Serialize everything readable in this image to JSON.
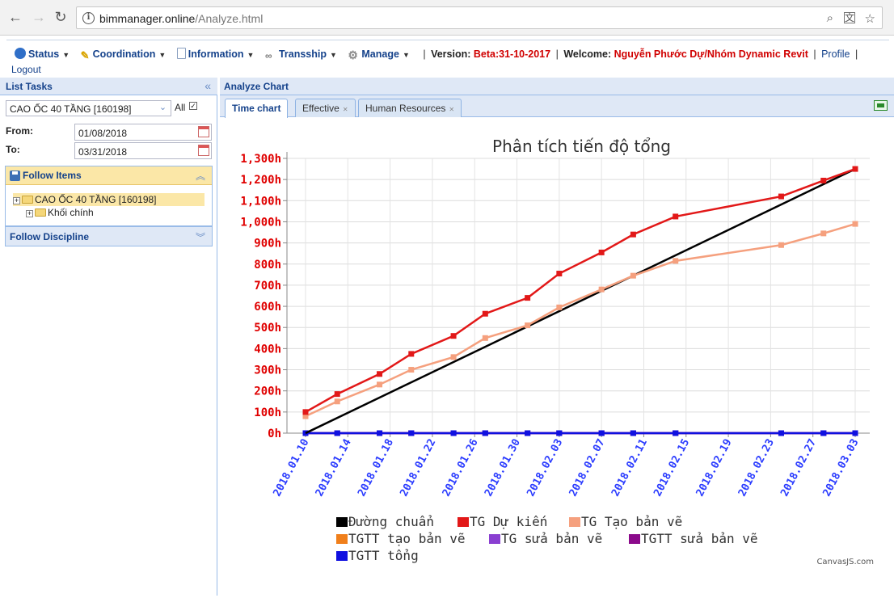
{
  "browser": {
    "url_host": "bimmanager.online",
    "url_path": "/Analyze.html"
  },
  "menu": {
    "items": [
      {
        "label": "Status",
        "icon": "status-icon",
        "color": "#2f6fc8"
      },
      {
        "label": "Coordination",
        "icon": "wand-icon",
        "color": "#d9a400"
      },
      {
        "label": "Information",
        "icon": "document-icon",
        "color": "#8aa0c0"
      },
      {
        "label": "Transship",
        "icon": "link-icon",
        "color": "#777777"
      },
      {
        "label": "Manage",
        "icon": "gear-icon",
        "color": "#888888"
      }
    ],
    "version_label": "Version:",
    "version_value": "Beta:31-10-2017",
    "welcome_label": "Welcome:",
    "welcome_value": "Nguyễn Phước Dự/Nhóm Dynamic Revit",
    "profile_link": "Profile",
    "logout_link": "Logout"
  },
  "left": {
    "title": "List Tasks",
    "project_select": "CAO ỐC 40 TẦNG [160198]",
    "all_label": "All",
    "all_checked": true,
    "from_label": "From:",
    "from_value": "01/08/2018",
    "to_label": "To:",
    "to_value": "03/31/2018",
    "follow_items_title": "Follow Items",
    "tree": [
      {
        "label": "CAO ỐC 40 TẦNG [160198]",
        "selected": true
      },
      {
        "label": "Khối chính",
        "selected": false
      }
    ],
    "follow_discipline_title": "Follow Discipline"
  },
  "right": {
    "title": "Analyze Chart",
    "tabs": [
      {
        "label": "Time chart",
        "active": true
      },
      {
        "label": "Effective",
        "active": false
      },
      {
        "label": "Human Resources",
        "active": false
      }
    ],
    "credit": "CanvasJS.com"
  },
  "chart_data": {
    "type": "line",
    "title": "Phân tích tiến độ tổng",
    "ylim": [
      0,
      1300
    ],
    "y_ticks": [
      "0h",
      "100h",
      "200h",
      "300h",
      "400h",
      "500h",
      "600h",
      "700h",
      "800h",
      "900h",
      "1,000h",
      "1,100h",
      "1,200h",
      "1,300h"
    ],
    "x_range": [
      "2018.01.10",
      "2018.03.03"
    ],
    "x_ticks": [
      "2018.01.10",
      "2018.01.14",
      "2018.01.18",
      "2018.01.22",
      "2018.01.26",
      "2018.01.30",
      "2018.02.03",
      "2018.02.07",
      "2018.02.11",
      "2018.02.15",
      "2018.02.19",
      "2018.02.23",
      "2018.02.27",
      "2018.03.03"
    ],
    "grid": true,
    "legend_position": "bottom",
    "series": [
      {
        "name": "Đường chuẩn",
        "color": "#000000",
        "markers": false,
        "x": [
          "2018.01.10",
          "2018.03.03"
        ],
        "y": [
          0,
          1250
        ]
      },
      {
        "name": "TG Dự kiến",
        "color": "#e21818",
        "markers": true,
        "x": [
          "2018.01.10",
          "2018.01.13",
          "2018.01.17",
          "2018.01.20",
          "2018.01.24",
          "2018.01.27",
          "2018.01.31",
          "2018.02.03",
          "2018.02.07",
          "2018.02.10",
          "2018.02.14",
          "2018.02.24",
          "2018.02.28",
          "2018.03.03"
        ],
        "y": [
          100,
          185,
          280,
          375,
          460,
          565,
          640,
          755,
          855,
          940,
          1025,
          1120,
          1195,
          1250
        ]
      },
      {
        "name": "TG Tạo bản vẽ",
        "color": "#f5a07e",
        "markers": true,
        "x": [
          "2018.01.10",
          "2018.01.13",
          "2018.01.17",
          "2018.01.20",
          "2018.01.24",
          "2018.01.27",
          "2018.01.31",
          "2018.02.03",
          "2018.02.07",
          "2018.02.10",
          "2018.02.14",
          "2018.02.24",
          "2018.02.28",
          "2018.03.03"
        ],
        "y": [
          80,
          150,
          230,
          300,
          360,
          450,
          510,
          595,
          680,
          745,
          815,
          890,
          945,
          990
        ]
      },
      {
        "name": "TGTT tạo bản vẽ",
        "color": "#f07f1b",
        "markers": true,
        "x": [
          "2018.01.10",
          "2018.01.13",
          "2018.01.17",
          "2018.01.20",
          "2018.01.24",
          "2018.01.27",
          "2018.01.31",
          "2018.02.03",
          "2018.02.07",
          "2018.02.10",
          "2018.02.14",
          "2018.02.24",
          "2018.02.28",
          "2018.03.03"
        ],
        "y": [
          0,
          0,
          0,
          0,
          0,
          0,
          0,
          0,
          0,
          0,
          0,
          0,
          0,
          0
        ]
      },
      {
        "name": "TG sửa bản vẽ",
        "color": "#8a3fd1",
        "markers": true,
        "x": [
          "2018.01.10",
          "2018.01.13",
          "2018.01.17",
          "2018.01.20",
          "2018.01.24",
          "2018.01.27",
          "2018.01.31",
          "2018.02.03",
          "2018.02.07",
          "2018.02.10",
          "2018.02.14",
          "2018.02.24",
          "2018.02.28",
          "2018.03.03"
        ],
        "y": [
          0,
          0,
          0,
          0,
          0,
          0,
          0,
          0,
          0,
          0,
          0,
          0,
          0,
          0
        ]
      },
      {
        "name": "TGTT sửa bản vẽ",
        "color": "#8b0a8b",
        "markers": true,
        "x": [
          "2018.01.10",
          "2018.01.13",
          "2018.01.17",
          "2018.01.20",
          "2018.01.24",
          "2018.01.27",
          "2018.01.31",
          "2018.02.03",
          "2018.02.07",
          "2018.02.10",
          "2018.02.14",
          "2018.02.24",
          "2018.02.28",
          "2018.03.03"
        ],
        "y": [
          0,
          0,
          0,
          0,
          0,
          0,
          0,
          0,
          0,
          0,
          0,
          0,
          0,
          0
        ]
      },
      {
        "name": "TGTT tổng",
        "color": "#1010e0",
        "markers": true,
        "x": [
          "2018.01.10",
          "2018.01.13",
          "2018.01.17",
          "2018.01.20",
          "2018.01.24",
          "2018.01.27",
          "2018.01.31",
          "2018.02.03",
          "2018.02.07",
          "2018.02.10",
          "2018.02.14",
          "2018.02.24",
          "2018.02.28",
          "2018.03.03"
        ],
        "y": [
          0,
          0,
          0,
          0,
          0,
          0,
          0,
          0,
          0,
          0,
          0,
          0,
          0,
          0
        ]
      }
    ]
  }
}
